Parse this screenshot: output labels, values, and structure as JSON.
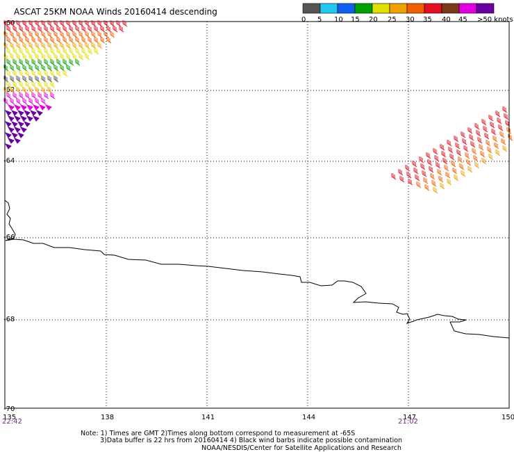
{
  "title": "ASCAT 25KM NOAA Winds 20160414 descending",
  "legend": {
    "labels": [
      "0",
      "5",
      "10",
      "15",
      "20",
      "25",
      "30",
      "35",
      "40",
      "45",
      ">50 knots"
    ],
    "colors": [
      "#555555",
      "#22c8f0",
      "#1060f0",
      "#00a000",
      "#e0e000",
      "#f0a000",
      "#f06000",
      "#e01020",
      "#7a3a1a",
      "#e000e0",
      "#6a00a0"
    ]
  },
  "map": {
    "lon_ticks": [
      "135",
      "138",
      "141",
      "144",
      "147",
      "150"
    ],
    "lat_ticks": [
      "-60",
      "-62",
      "-64",
      "-66",
      "-68",
      "-70"
    ],
    "times": [
      "22:42",
      "21:02"
    ],
    "coastline_icon": "coastline-path",
    "wind_barb_icon": "wind-barb-icon"
  },
  "notes": {
    "line1": "Note: 1) Times are GMT 2)Times along bottom correspond to measurement at -65S",
    "line2": "3)Data buffer is 22 hrs from 20160414 4) Black wind barbs indicate possible contamination",
    "line3": "NOAA/NESDIS/Center for Satellite Applications and Research"
  }
}
